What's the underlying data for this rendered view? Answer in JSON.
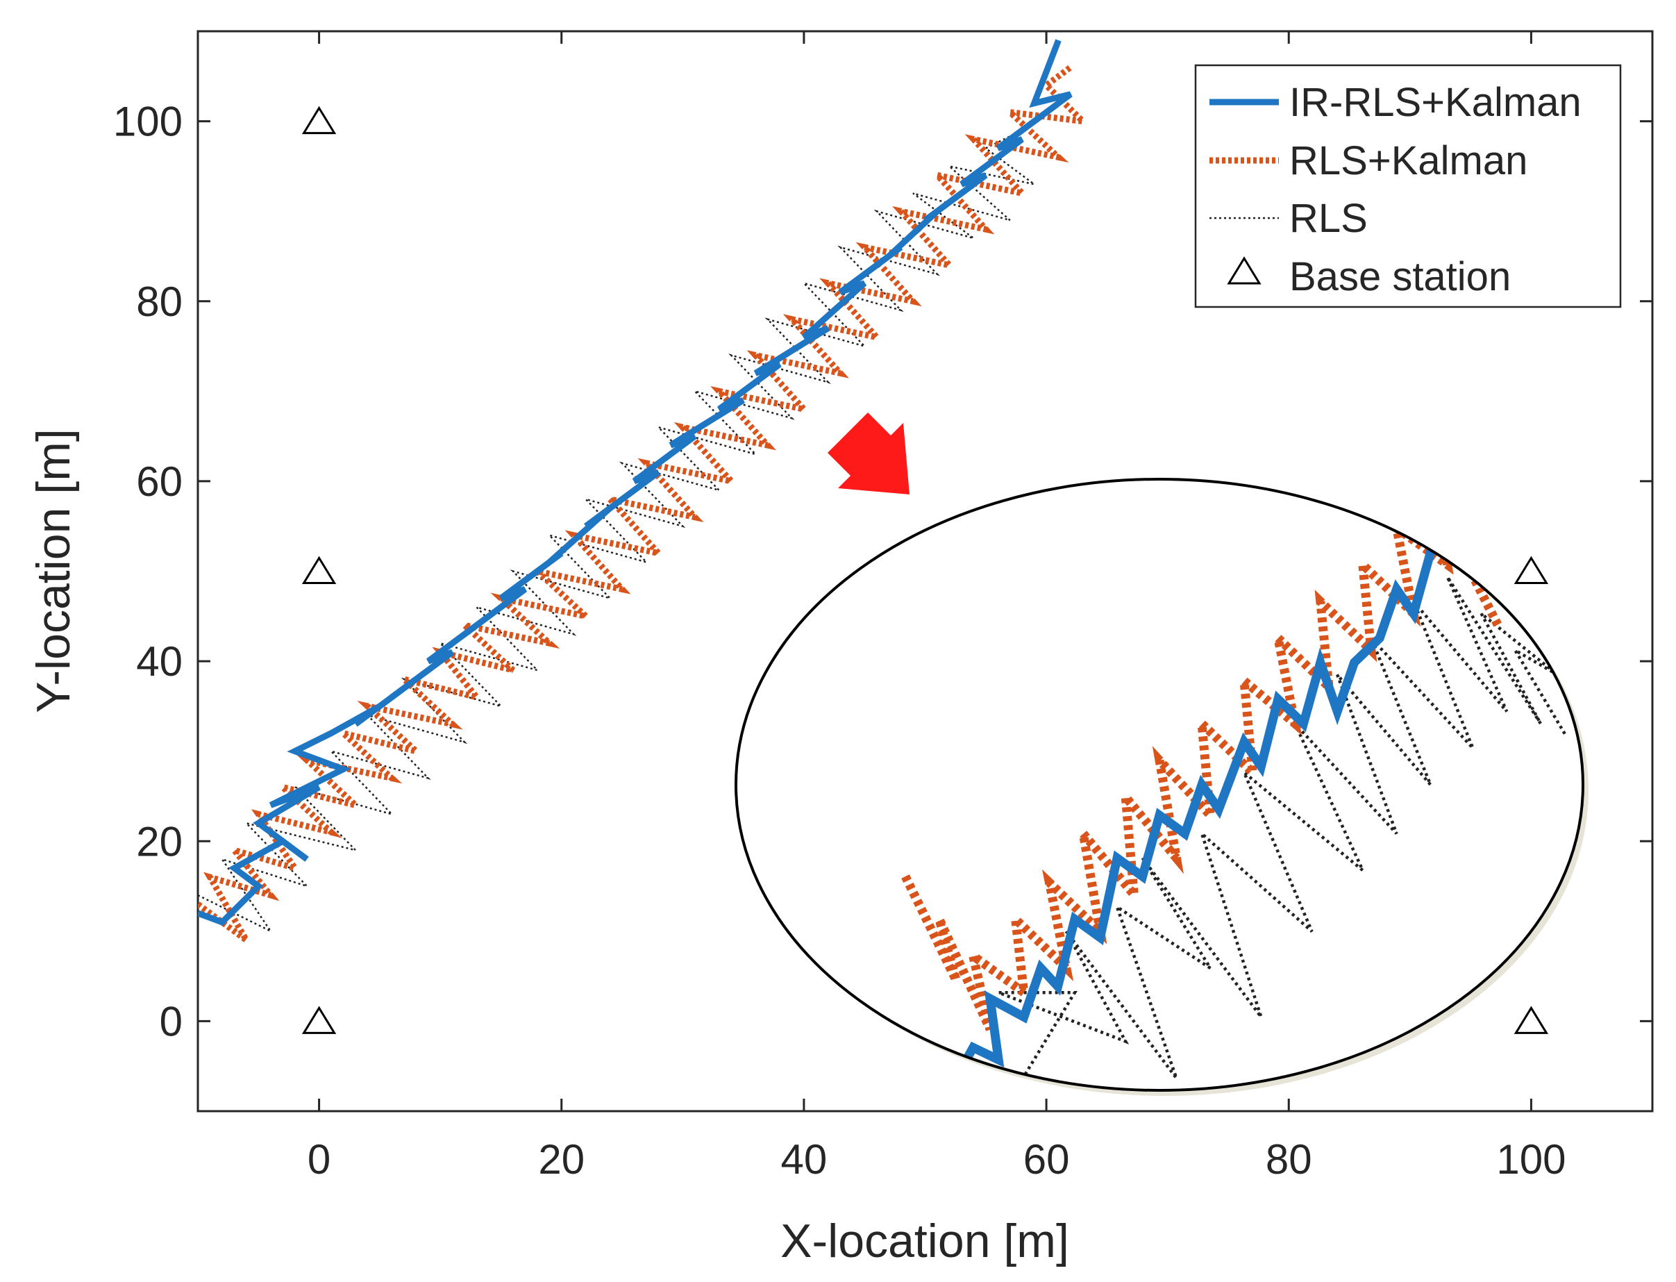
{
  "chart_data": {
    "type": "line",
    "xlabel": "X-location [m]",
    "ylabel": "Y-location [m]",
    "xlim": [
      -10,
      110
    ],
    "ylim": [
      -10,
      110
    ],
    "xticks": [
      0,
      20,
      40,
      60,
      80,
      100
    ],
    "yticks": [
      0,
      20,
      40,
      60,
      80,
      100
    ],
    "grid": false,
    "legend_position": "top-right",
    "colors": {
      "ir_rls_kalman": "#1f77c4",
      "rls_kalman": "#d9541a",
      "rls": "#222222",
      "base_station": "#000000",
      "arrow": "#ff1a1a"
    },
    "legend": [
      {
        "key": "ir_rls_kalman",
        "label": "IR-RLS+Kalman",
        "style": "solid"
      },
      {
        "key": "rls_kalman",
        "label": "RLS+Kalman",
        "style": "dotted-thick"
      },
      {
        "key": "rls",
        "label": "RLS",
        "style": "dotted-thin"
      },
      {
        "key": "base_station",
        "label": "Base station",
        "style": "triangle"
      }
    ],
    "base_stations": [
      {
        "x": 0,
        "y": 0
      },
      {
        "x": 0,
        "y": 50
      },
      {
        "x": 0,
        "y": 100
      },
      {
        "x": 100,
        "y": 0
      },
      {
        "x": 100,
        "y": 50
      }
    ],
    "series": [
      {
        "key": "ir_rls_kalman",
        "name": "IR-RLS+Kalman",
        "x": [
          -10,
          -8,
          -5,
          -7,
          -3,
          -1,
          -5,
          0,
          -4,
          2,
          -2,
          1,
          5,
          3,
          8,
          6,
          11,
          9,
          14,
          12,
          17,
          15,
          20,
          19,
          24,
          22,
          28,
          26,
          31,
          29,
          35,
          33,
          38,
          36,
          42,
          40,
          45,
          43,
          48,
          47,
          51,
          50,
          55,
          53,
          58,
          56,
          62,
          59,
          61
        ],
        "y": [
          12,
          11,
          15,
          17,
          20,
          18,
          22,
          26,
          24,
          28,
          30,
          32,
          35,
          33,
          38,
          36,
          41,
          40,
          45,
          43,
          48,
          47,
          52,
          51,
          57,
          55,
          61,
          60,
          65,
          64,
          69,
          68,
          73,
          72,
          77,
          76,
          82,
          81,
          86,
          85,
          90,
          89,
          94,
          93,
          98,
          97,
          103,
          102,
          109
        ]
      },
      {
        "key": "rls_kalman",
        "name": "RLS+Kalman",
        "x": [
          -10,
          -6,
          -9,
          -4,
          -7,
          -2,
          -5,
          1,
          -3,
          3,
          -1,
          6,
          2,
          8,
          4,
          11,
          7,
          13,
          10,
          16,
          12,
          19,
          15,
          22,
          18,
          25,
          21,
          28,
          24,
          31,
          27,
          34,
          30,
          37,
          33,
          40,
          36,
          43,
          39,
          46,
          42,
          49,
          45,
          52,
          48,
          55,
          51,
          58,
          54,
          61,
          57,
          63,
          60,
          62
        ],
        "y": [
          13,
          9,
          16,
          14,
          19,
          17,
          23,
          21,
          26,
          24,
          29,
          27,
          32,
          30,
          35,
          33,
          38,
          36,
          41,
          39,
          44,
          42,
          47,
          45,
          50,
          48,
          54,
          52,
          58,
          56,
          62,
          60,
          66,
          64,
          70,
          68,
          74,
          72,
          78,
          76,
          82,
          80,
          86,
          84,
          90,
          88,
          94,
          92,
          98,
          96,
          101,
          100,
          104,
          106
        ]
      },
      {
        "key": "rls",
        "name": "RLS",
        "x": [
          -10,
          -4,
          -8,
          -1,
          -6,
          3,
          -2,
          6,
          1,
          9,
          4,
          12,
          7,
          15,
          10,
          18,
          13,
          21,
          16,
          24,
          19,
          27,
          22,
          30,
          25,
          33,
          28,
          36,
          31,
          39,
          34,
          42,
          37,
          45,
          40,
          48,
          43,
          51,
          46,
          54,
          49,
          57,
          52,
          59,
          55,
          58
        ],
        "y": [
          14,
          10,
          18,
          15,
          22,
          19,
          26,
          23,
          30,
          27,
          34,
          31,
          38,
          35,
          42,
          39,
          46,
          43,
          50,
          47,
          54,
          51,
          58,
          55,
          62,
          59,
          66,
          63,
          70,
          67,
          74,
          71,
          78,
          75,
          82,
          79,
          86,
          83,
          90,
          87,
          92,
          89,
          95,
          93,
          97,
          99
        ]
      }
    ],
    "inset": {
      "ir_rls_kalman": [
        [
          0.26,
          0.98
        ],
        [
          0.28,
          0.93
        ],
        [
          0.31,
          0.95
        ],
        [
          0.3,
          0.85
        ],
        [
          0.34,
          0.88
        ],
        [
          0.36,
          0.8
        ],
        [
          0.38,
          0.83
        ],
        [
          0.4,
          0.72
        ],
        [
          0.43,
          0.75
        ],
        [
          0.45,
          0.62
        ],
        [
          0.48,
          0.65
        ],
        [
          0.5,
          0.55
        ],
        [
          0.53,
          0.58
        ],
        [
          0.55,
          0.5
        ],
        [
          0.57,
          0.54
        ],
        [
          0.6,
          0.43
        ],
        [
          0.62,
          0.47
        ],
        [
          0.64,
          0.36
        ],
        [
          0.67,
          0.4
        ],
        [
          0.69,
          0.3
        ],
        [
          0.71,
          0.38
        ],
        [
          0.73,
          0.3
        ],
        [
          0.76,
          0.26
        ],
        [
          0.78,
          0.18
        ],
        [
          0.8,
          0.22
        ],
        [
          0.82,
          0.12
        ],
        [
          0.84,
          0.1
        ],
        [
          0.86,
          0.14
        ]
      ],
      "rls_kalman": [
        [
          0.2,
          0.65
        ],
        [
          0.26,
          0.82
        ],
        [
          0.24,
          0.72
        ],
        [
          0.3,
          0.9
        ],
        [
          0.28,
          0.78
        ],
        [
          0.34,
          0.84
        ],
        [
          0.33,
          0.72
        ],
        [
          0.39,
          0.8
        ],
        [
          0.37,
          0.66
        ],
        [
          0.43,
          0.74
        ],
        [
          0.41,
          0.58
        ],
        [
          0.47,
          0.68
        ],
        [
          0.46,
          0.52
        ],
        [
          0.52,
          0.62
        ],
        [
          0.5,
          0.46
        ],
        [
          0.56,
          0.55
        ],
        [
          0.55,
          0.4
        ],
        [
          0.61,
          0.48
        ],
        [
          0.6,
          0.33
        ],
        [
          0.66,
          0.4
        ],
        [
          0.64,
          0.26
        ],
        [
          0.7,
          0.34
        ],
        [
          0.69,
          0.2
        ],
        [
          0.75,
          0.28
        ],
        [
          0.74,
          0.14
        ],
        [
          0.8,
          0.22
        ],
        [
          0.78,
          0.08
        ],
        [
          0.84,
          0.14
        ],
        [
          0.83,
          0.05
        ],
        [
          0.9,
          0.24
        ]
      ],
      "rls": [
        [
          0.33,
          1.0
        ],
        [
          0.4,
          0.84
        ],
        [
          0.31,
          0.84
        ],
        [
          0.46,
          0.92
        ],
        [
          0.39,
          0.74
        ],
        [
          0.52,
          0.98
        ],
        [
          0.45,
          0.7
        ],
        [
          0.56,
          0.8
        ],
        [
          0.48,
          0.62
        ],
        [
          0.62,
          0.88
        ],
        [
          0.55,
          0.58
        ],
        [
          0.68,
          0.74
        ],
        [
          0.6,
          0.48
        ],
        [
          0.74,
          0.64
        ],
        [
          0.66,
          0.4
        ],
        [
          0.78,
          0.58
        ],
        [
          0.71,
          0.32
        ],
        [
          0.82,
          0.5
        ],
        [
          0.75,
          0.26
        ],
        [
          0.87,
          0.44
        ],
        [
          0.8,
          0.2
        ],
        [
          0.91,
          0.38
        ],
        [
          0.84,
          0.16
        ],
        [
          0.95,
          0.4
        ],
        [
          0.88,
          0.22
        ],
        [
          0.97,
          0.32
        ],
        [
          0.92,
          0.28
        ],
        [
          0.98,
          0.42
        ]
      ]
    }
  }
}
